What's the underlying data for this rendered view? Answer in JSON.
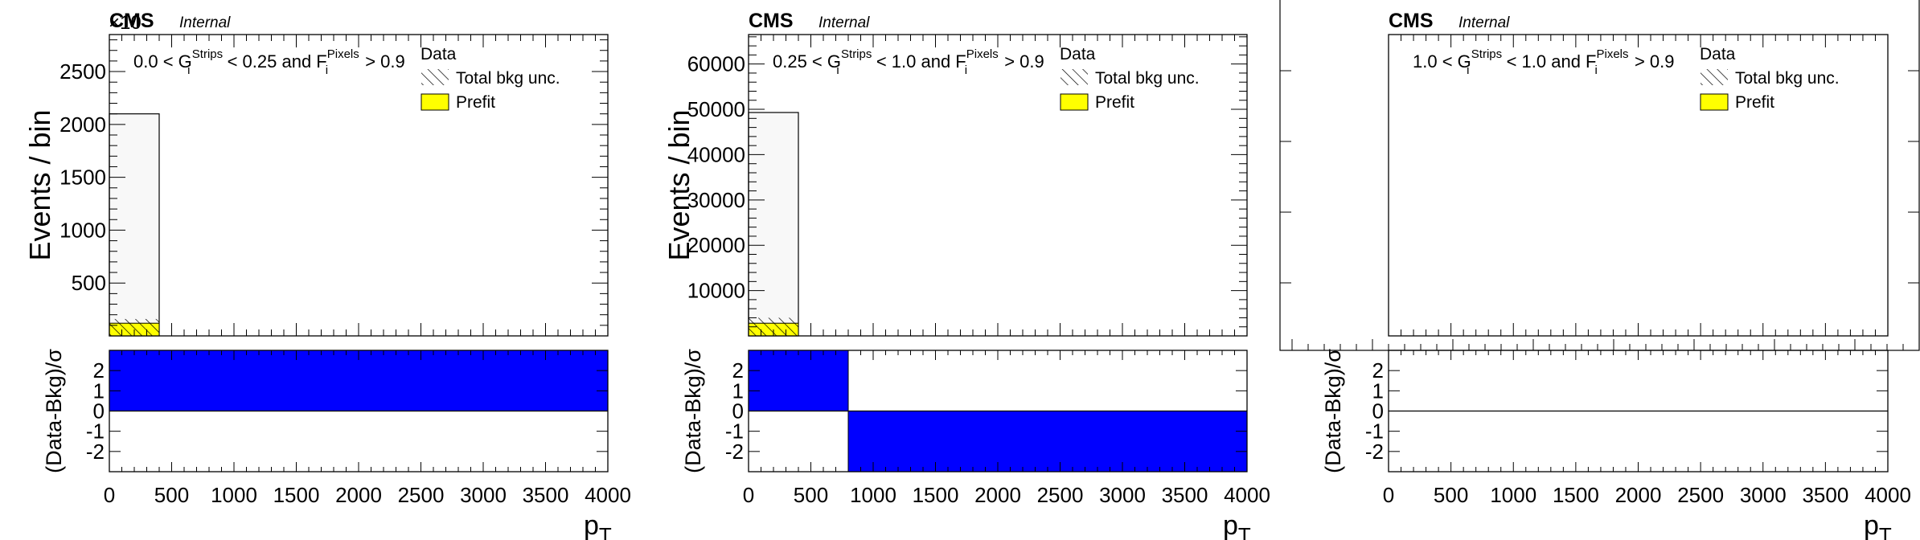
{
  "chart_data": [
    {
      "type": "histogram",
      "panel": "left",
      "experiment_label": "CMS",
      "status_label": "Internal",
      "cut_label": {
        "prefix": "0.0 < G",
        "g_sub": "i",
        "g_sup": "Strips",
        "middle": " < 0.25  and F",
        "f_sub": "i",
        "f_sup": "Pixels",
        "suffix": " > 0.9"
      },
      "legend": [
        "Data",
        "Total bkg unc.",
        "Prefit"
      ],
      "ylabel": "Events / bin",
      "xlabel": "p",
      "xlabel_sub": "T",
      "ratio_ylabel": "(Data-Bkg)/σ",
      "y_exponent": "×10",
      "xlim": [
        0,
        4000
      ],
      "ylim": [
        0,
        2850
      ],
      "y_ticks": [
        500,
        1000,
        1500,
        2000,
        2500
      ],
      "x_ticks": [
        0,
        500,
        1000,
        1500,
        2000,
        2500,
        3000,
        3500,
        4000
      ],
      "bins": [
        {
          "low": 0,
          "high": 400,
          "data": 2100,
          "prefit": 120,
          "unc_low": 120,
          "unc_high": 160
        }
      ],
      "ratio_ylim": [
        -3,
        3
      ],
      "ratio_ticks": [
        -2,
        -1,
        0,
        1,
        2
      ],
      "pulls": [
        {
          "low": 0,
          "high": 4000,
          "value": 3
        }
      ]
    },
    {
      "type": "histogram",
      "panel": "middle",
      "experiment_label": "CMS",
      "status_label": "Internal",
      "cut_label": {
        "prefix": "0.25 < G",
        "g_sub": "i",
        "g_sup": "Strips",
        "middle": " < 1.0  and F",
        "f_sub": "i",
        "f_sup": "Pixels",
        "suffix": " > 0.9"
      },
      "legend": [
        "Data",
        "Total bkg unc.",
        "Prefit"
      ],
      "ylabel": "Events / bin",
      "xlabel": "p",
      "xlabel_sub": "T",
      "ratio_ylabel": "(Data-Bkg)/σ",
      "xlim": [
        0,
        4000
      ],
      "ylim": [
        0,
        66500
      ],
      "y_ticks": [
        10000,
        20000,
        30000,
        40000,
        50000,
        60000
      ],
      "x_ticks": [
        0,
        500,
        1000,
        1500,
        2000,
        2500,
        3000,
        3500,
        4000
      ],
      "bins": [
        {
          "low": 0,
          "high": 400,
          "data": 49300,
          "prefit": 2800,
          "unc_low": 2800,
          "unc_high": 4000
        }
      ],
      "ratio_ylim": [
        -3,
        3
      ],
      "ratio_ticks": [
        -2,
        -1,
        0,
        1,
        2
      ],
      "pulls": [
        {
          "low": 0,
          "high": 800,
          "value": 3
        },
        {
          "low": 800,
          "high": 4000,
          "value": -3
        }
      ]
    },
    {
      "type": "histogram",
      "panel": "right",
      "experiment_label": "CMS",
      "status_label": "Internal",
      "cut_label": {
        "prefix": "1.0 < G",
        "g_sub": "i",
        "g_sup": "Strips",
        "middle": " < 1.0  and F",
        "f_sub": "i",
        "f_sup": "Pixels",
        "suffix": " > 0.9"
      },
      "legend": [
        "Data",
        "Total bkg unc.",
        "Prefit"
      ],
      "xlabel": "p",
      "xlabel_sub": "T",
      "ratio_ylabel": "(Data-Bkg)/σ",
      "xlim": [
        0,
        4000
      ],
      "x_ticks": [
        0,
        500,
        1000,
        1500,
        2000,
        2500,
        3000,
        3500,
        4000
      ],
      "bins": [],
      "ratio_ylim": [
        -3,
        3
      ],
      "ratio_ticks": [
        -2,
        -1,
        0,
        1,
        2
      ],
      "pulls": []
    }
  ],
  "colors": {
    "prefit": "#ffff00",
    "pull": "#0000ff",
    "data_fill": "#f8f8f8",
    "frame": "#000000"
  }
}
